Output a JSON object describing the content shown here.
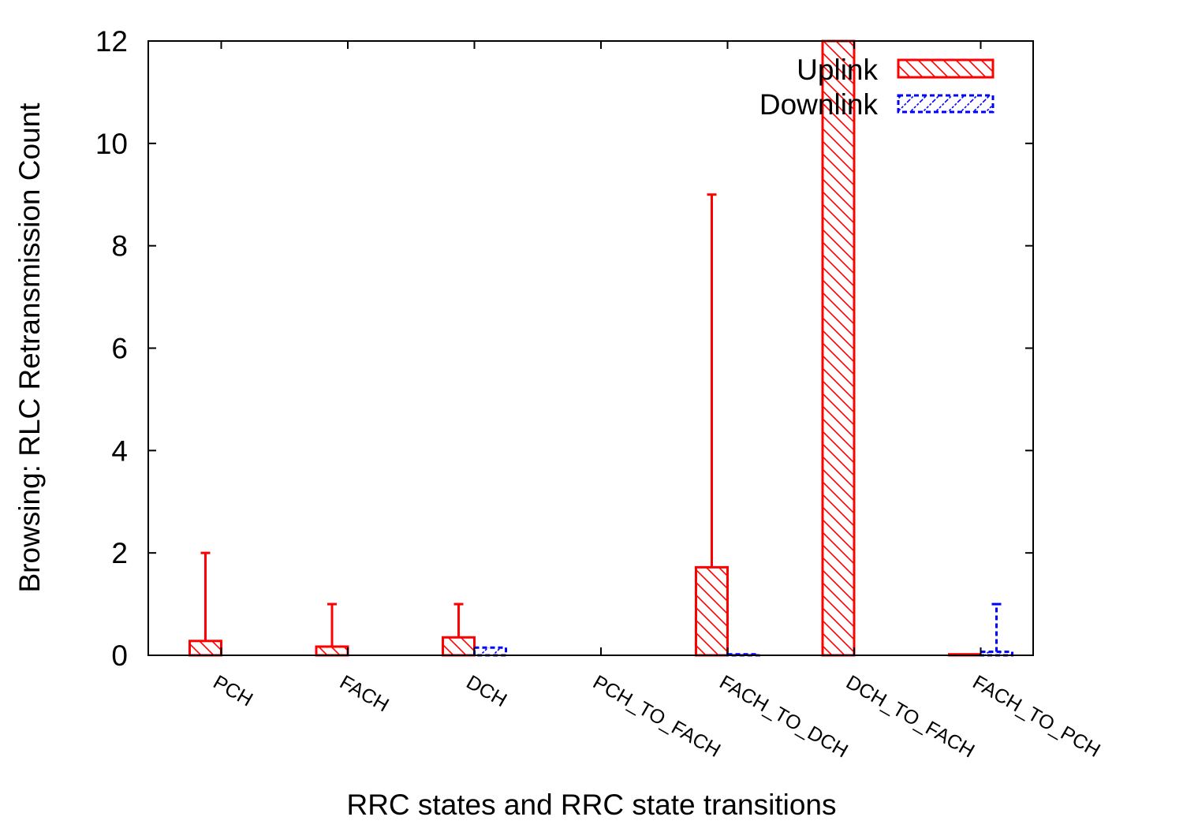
{
  "chart_data": {
    "type": "bar",
    "title": "",
    "xlabel": "RRC states and RRC state transitions",
    "ylabel": "Browsing: RLC Retransmission Count",
    "ylim": [
      0,
      12
    ],
    "yticks": [
      0,
      2,
      4,
      6,
      8,
      10,
      12
    ],
    "categories": [
      "PCH",
      "FACH",
      "DCH",
      "PCH_TO_FACH",
      "FACH_TO_DCH",
      "DCH_TO_FACH",
      "FACH_TO_PCH"
    ],
    "series": [
      {
        "name": "Uplink",
        "color": "#ff0000",
        "pattern": "diagonal-hatch",
        "values": [
          0.28,
          0.17,
          0.35,
          0.0,
          1.72,
          12.0,
          0.02
        ],
        "error_upper": [
          2,
          1,
          1,
          null,
          9,
          null,
          null
        ]
      },
      {
        "name": "Downlink",
        "color": "#0000ff",
        "pattern": "dashed-hatch",
        "values": [
          0.0,
          0.0,
          0.15,
          0.0,
          0.02,
          0.0,
          0.07
        ],
        "error_upper": [
          null,
          null,
          null,
          null,
          null,
          null,
          1
        ]
      }
    ],
    "legend_position": "top-right",
    "grid": false
  }
}
